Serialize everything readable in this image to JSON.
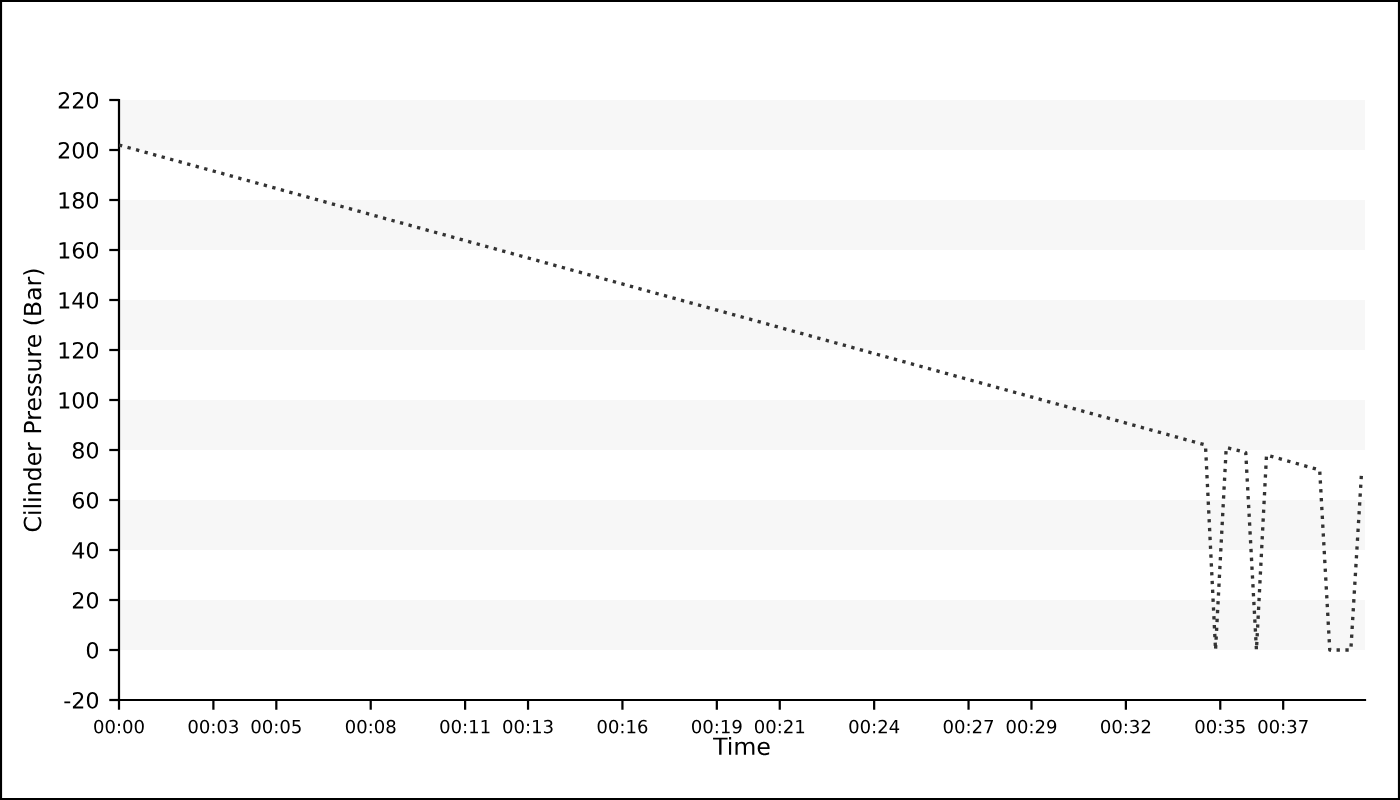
{
  "chart_data": {
    "type": "line",
    "xlabel": "Time",
    "ylabel": "Cilinder Pressure (Bar)",
    "x": [
      0,
      34.53,
      34.85,
      35.19,
      35.81,
      36.15,
      36.47,
      38.16,
      38.48,
      39.15,
      39.49
    ],
    "series": [
      {
        "color": "#333333",
        "values": [
          202,
          82,
          0,
          81,
          79,
          0,
          78,
          72,
          0,
          0,
          71
        ]
      }
    ],
    "line_style": "dotted",
    "marker": "none",
    "xlim": [
      0,
      39.6
    ],
    "xticks": [
      {
        "value": 0,
        "label": "00:00"
      },
      {
        "value": 3,
        "label": "00:03"
      },
      {
        "value": 5,
        "label": "00:05"
      },
      {
        "value": 8,
        "label": "00:08"
      },
      {
        "value": 11,
        "label": "00:11"
      },
      {
        "value": 13,
        "label": "00:13"
      },
      {
        "value": 16,
        "label": "00:16"
      },
      {
        "value": 19,
        "label": "00:19"
      },
      {
        "value": 21,
        "label": "00:21"
      },
      {
        "value": 24,
        "label": "00:24"
      },
      {
        "value": 27,
        "label": "00:27"
      },
      {
        "value": 29,
        "label": "00:29"
      },
      {
        "value": 32,
        "label": "00:32"
      },
      {
        "value": 35,
        "label": "00:35"
      },
      {
        "value": 37,
        "label": "00:37"
      }
    ],
    "ylim": [
      -20,
      220
    ],
    "yticks": [
      -20,
      0,
      20,
      40,
      60,
      80,
      100,
      120,
      140,
      160,
      180,
      200,
      220
    ],
    "bands": [
      {
        "axis": "y",
        "from": 0,
        "to": 20,
        "color": "#f7f7f7"
      },
      {
        "axis": "y",
        "from": 40,
        "to": 60,
        "color": "#f7f7f7"
      },
      {
        "axis": "y",
        "from": 80,
        "to": 100,
        "color": "#f7f7f7"
      },
      {
        "axis": "y",
        "from": 120,
        "to": 140,
        "color": "#f7f7f7"
      },
      {
        "axis": "y",
        "from": 160,
        "to": 180,
        "color": "#f7f7f7"
      },
      {
        "axis": "y",
        "from": 200,
        "to": 220,
        "color": "#f7f7f7"
      }
    ],
    "grid": false
  }
}
